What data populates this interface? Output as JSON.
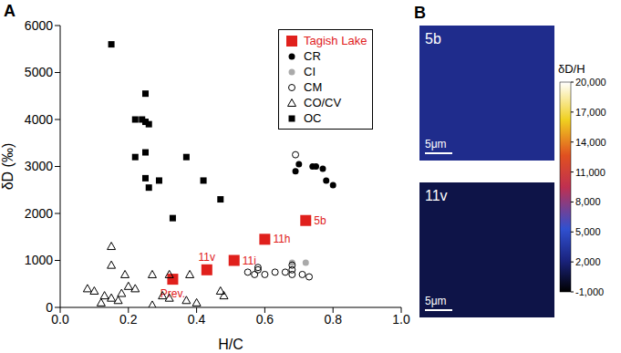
{
  "chart_data": {
    "type": "scatter",
    "panel": "A",
    "x_label": "H/C",
    "y_label": "δD (‰)",
    "xlim": [
      0,
      1
    ],
    "ylim": [
      0,
      6000
    ],
    "xticks": [
      {
        "value": 0,
        "label": "0.0"
      },
      0.2,
      0.4,
      0.6,
      0.8,
      {
        "value": 1,
        "label": "1.0"
      }
    ],
    "yticks": [
      0,
      1000,
      2000,
      3000,
      4000,
      5000,
      6000
    ],
    "legend": "top-right",
    "series": [
      {
        "name": "Tagish Lake",
        "color": "#e0201c",
        "marker": "square",
        "x": [
          0.33,
          0.43,
          0.51,
          0.6,
          0.72
        ],
        "values": [
          600,
          800,
          1000,
          1450,
          1850
        ],
        "labels": [
          "Prev.",
          "11v",
          "11i",
          "11h",
          "5b"
        ]
      },
      {
        "name": "CR",
        "color": "#000000",
        "marker": "circle",
        "x": [
          0.69,
          0.7,
          0.74,
          0.75,
          0.77,
          0.78,
          0.8
        ],
        "values": [
          2900,
          3050,
          3000,
          3000,
          2950,
          2700,
          2600
        ]
      },
      {
        "name": "CI",
        "color": "#aaaaaa",
        "marker": "circle",
        "x": [
          0.68,
          0.72
        ],
        "values": [
          950,
          950
        ]
      },
      {
        "name": "CM",
        "color": "#000000",
        "marker": "open_circle",
        "x": [
          0.69,
          0.55,
          0.57,
          0.58,
          0.58,
          0.6,
          0.63,
          0.66,
          0.68,
          0.68,
          0.68,
          0.71,
          0.73
        ],
        "values": [
          3250,
          750,
          700,
          800,
          850,
          700,
          750,
          750,
          700,
          800,
          900,
          700,
          650
        ]
      },
      {
        "name": "CO/CV",
        "color": "#000000",
        "marker": "open_triangle",
        "x": [
          0.15,
          0.15,
          0.08,
          0.1,
          0.13,
          0.15,
          0.17,
          0.18,
          0.2,
          0.22,
          0.27,
          0.3,
          0.32,
          0.32,
          0.37,
          0.4,
          0.38,
          0.47,
          0.48,
          0.12,
          0.19,
          0.27
        ],
        "values": [
          1300,
          900,
          400,
          350,
          250,
          200,
          150,
          300,
          450,
          400,
          700,
          250,
          200,
          700,
          150,
          100,
          700,
          350,
          250,
          100,
          700,
          50
        ]
      },
      {
        "name": "OC",
        "color": "#000000",
        "marker": "square",
        "x": [
          0.15,
          0.22,
          0.24,
          0.25,
          0.25,
          0.26,
          0.22,
          0.25,
          0.25,
          0.26,
          0.29,
          0.37,
          0.42,
          0.47,
          0.33
        ],
        "values": [
          5600,
          4000,
          4000,
          3950,
          4550,
          3900,
          3200,
          3300,
          2750,
          2550,
          2700,
          3200,
          2700,
          2300,
          1900
        ]
      }
    ]
  },
  "panel_b": {
    "panel": "B",
    "images": [
      {
        "label": "5b",
        "scale_bar": "5μm"
      },
      {
        "label": "11v",
        "scale_bar": "5μm"
      }
    ],
    "colorbar": {
      "title": "δD/H",
      "range": [
        -1000,
        20000
      ],
      "ticks": [
        {
          "value": -1000,
          "label": "-1,000"
        },
        {
          "value": 2000,
          "label": "2,000"
        },
        {
          "value": 5000,
          "label": "5,000"
        },
        {
          "value": 8000,
          "label": "8,000"
        },
        {
          "value": 11000,
          "label": "11,000"
        },
        {
          "value": 14000,
          "label": "14,000"
        },
        {
          "value": 17000,
          "label": "17,000"
        },
        {
          "value": 20000,
          "label": "20,000"
        }
      ]
    }
  }
}
